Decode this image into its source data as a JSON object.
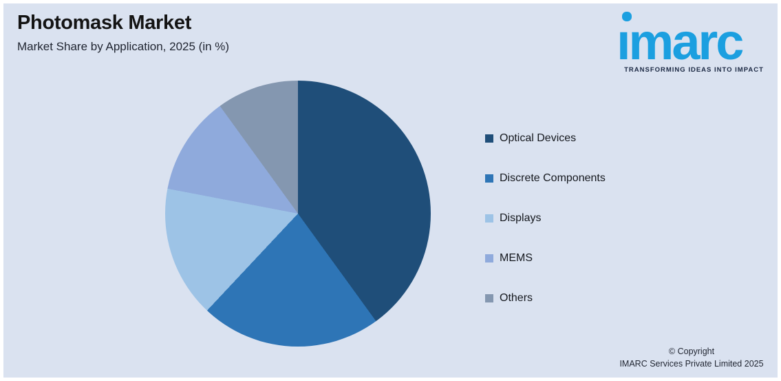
{
  "background_color": "#dae2f0",
  "header": {
    "title": "Photomask Market",
    "subtitle": "Market Share by Application, 2025 (in %)"
  },
  "logo": {
    "wordmark": "imarc",
    "tagline": "TRANSFORMING IDEAS INTO IMPACT",
    "brand_blue": "#1b9fe0",
    "tagline_color": "#1a2742"
  },
  "chart_data": {
    "type": "pie",
    "title": "Photomask Market",
    "subtitle": "Market Share by Application, 2025 (in %)",
    "unit": "%",
    "categories": [
      "Optical Devices",
      "Discrete Components",
      "Displays",
      "MEMS",
      "Others"
    ],
    "values": [
      40,
      22,
      16,
      12,
      10
    ],
    "colors": [
      "#1f4e79",
      "#2e75b6",
      "#9dc3e6",
      "#8faadc",
      "#8497b0"
    ],
    "start_angle_deg": 0,
    "direction": "clockwise",
    "legend_position": "right",
    "data_labels": false
  },
  "footer": {
    "line1": "© Copyright",
    "line2": "IMARC Services Private Limited 2025"
  }
}
